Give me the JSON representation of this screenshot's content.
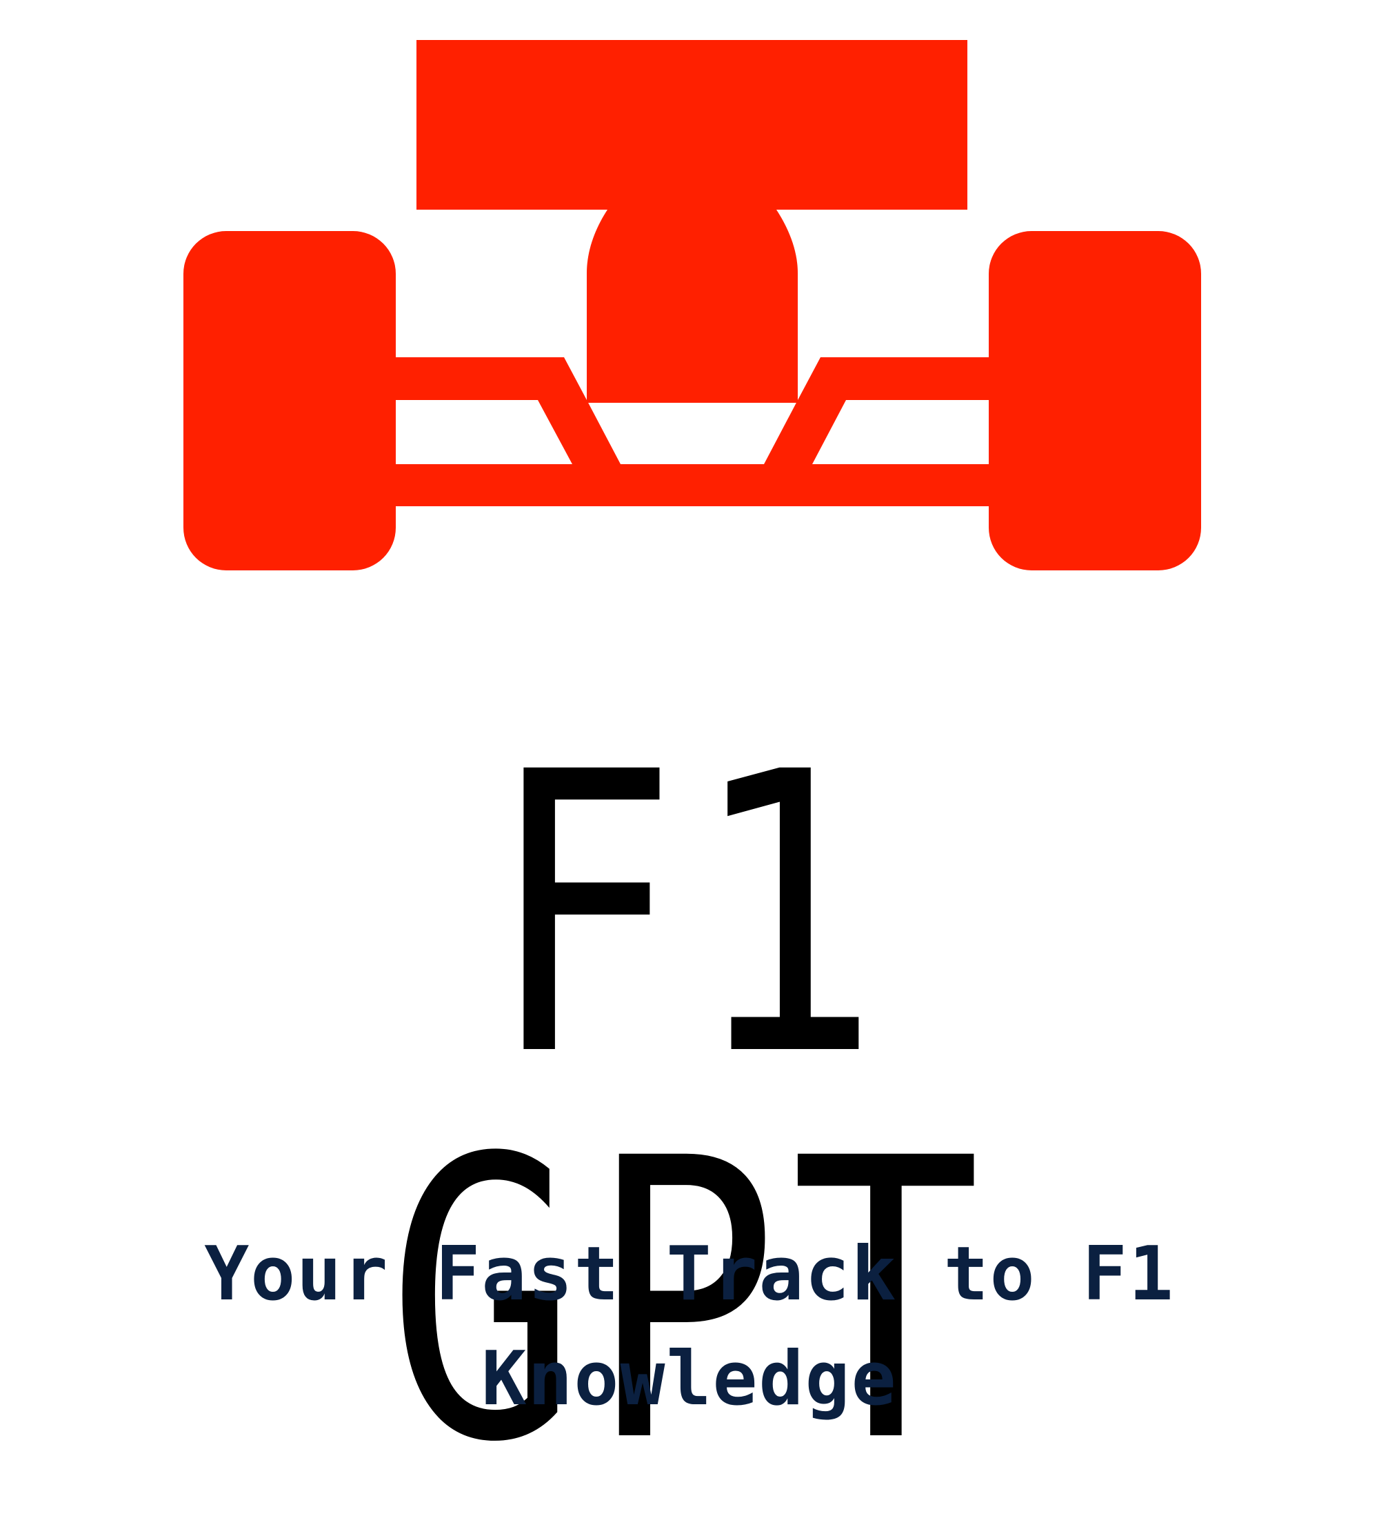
{
  "logo": {
    "icon": "formula-one-car-icon",
    "color": "#FF2000"
  },
  "title": {
    "text": "F1 GPT",
    "color": "#000000"
  },
  "tagline": {
    "line1": "Your Fast Track to F1",
    "line2": "Knowledge",
    "color": "#0B2040"
  }
}
